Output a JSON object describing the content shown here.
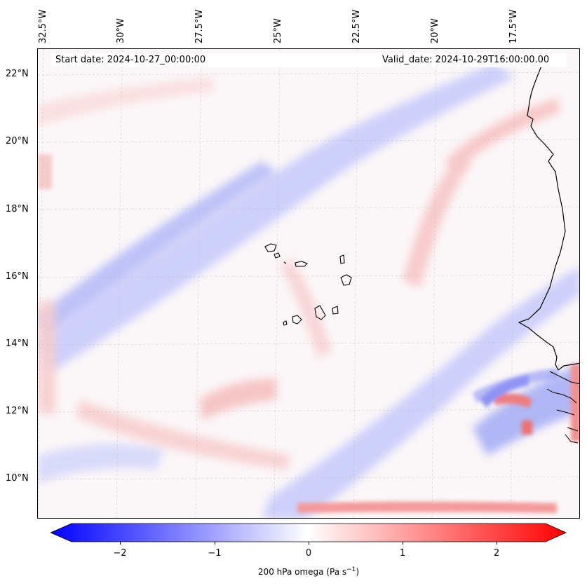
{
  "map": {
    "start_date_label": "Start date: 2024-10-27_00:00:00",
    "valid_date_label": "Valid_date: 2024-10-29T16:00:00.00",
    "latitude_labels": [
      "22°N",
      "20°N",
      "18°N",
      "16°N",
      "14°N",
      "12°N",
      "10°N"
    ],
    "longitude_labels": [
      "32.5°W",
      "30°W",
      "27.5°W",
      "25°W",
      "22.5°W",
      "20°W",
      "17.5°W"
    ],
    "field": "200 hPa omega",
    "colors": {
      "negative": "#0000ff",
      "zero": "#ffffff",
      "positive": "#ff0000",
      "coastline": "#000000"
    }
  },
  "colorbar": {
    "tick_labels": [
      "−2",
      "−1",
      "0",
      "1",
      "2"
    ],
    "label_text": "200 hPa omega (Pa s",
    "label_exponent": "−1",
    "label_close": ")",
    "range": [
      -2.6,
      2.6
    ],
    "extend": "both"
  }
}
